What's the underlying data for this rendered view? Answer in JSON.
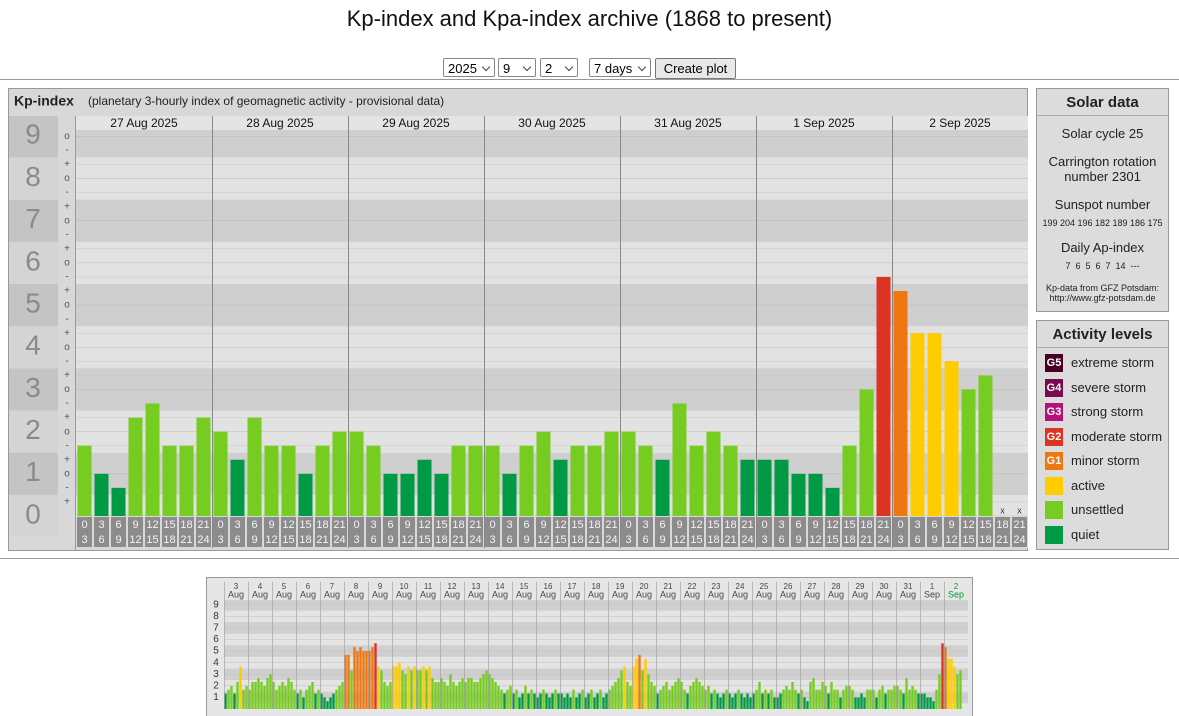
{
  "title": "Kp-index and Kpa-index archive (1868 to present)",
  "controls": {
    "year": "2025",
    "month": "9",
    "day": "2",
    "span": "7 days",
    "button": "Create plot"
  },
  "chart_data": [
    {
      "type": "bar",
      "title": "Kp-index",
      "subtitle": "(planetary 3-hourly index of geomagnetic activity - provisional data)",
      "days": [
        "27 Aug 2025",
        "28 Aug 2025",
        "29 Aug 2025",
        "30 Aug 2025",
        "31 Aug 2025",
        "1 Sep 2025",
        "2 Sep 2025"
      ],
      "hour_intervals": [
        [
          "0",
          "3"
        ],
        [
          "3",
          "6"
        ],
        [
          "6",
          "9"
        ],
        [
          "9",
          "12"
        ],
        [
          "12",
          "15"
        ],
        [
          "15",
          "18"
        ],
        [
          "18",
          "21"
        ],
        [
          "21",
          "24"
        ]
      ],
      "missing_label": "x",
      "values": [
        1.667,
        1,
        0.667,
        2.333,
        2.667,
        1.667,
        1.667,
        2.333,
        2,
        1.333,
        2.333,
        1.667,
        1.667,
        1,
        1.667,
        2,
        2,
        1.667,
        1,
        1,
        1.333,
        1,
        1.667,
        1.667,
        1.667,
        1,
        1.667,
        2,
        1.333,
        1.667,
        1.667,
        2,
        2,
        1.667,
        1.333,
        2.667,
        1.667,
        2,
        1.667,
        1.333,
        1.333,
        1.333,
        1,
        1,
        0.667,
        1.667,
        3,
        5.667,
        5.333,
        4.333,
        4.333,
        3.667,
        3,
        3.333,
        null,
        null
      ],
      "colors": [
        "#7c2",
        "#094",
        "#094",
        "#7c2",
        "#7c2",
        "#7c2",
        "#7c2",
        "#7c2",
        "#7c2",
        "#094",
        "#7c2",
        "#7c2",
        "#7c2",
        "#094",
        "#7c2",
        "#7c2",
        "#7c2",
        "#7c2",
        "#094",
        "#094",
        "#094",
        "#094",
        "#7c2",
        "#7c2",
        "#7c2",
        "#094",
        "#7c2",
        "#7c2",
        "#094",
        "#7c2",
        "#7c2",
        "#7c2",
        "#7c2",
        "#7c2",
        "#094",
        "#7c2",
        "#7c2",
        "#7c2",
        "#7c2",
        "#094",
        "#094",
        "#094",
        "#094",
        "#094",
        "#094",
        "#7c2",
        "#7c2",
        "#d32",
        "#e71",
        "#fc0",
        "#fc0",
        "#fc0",
        "#7c2",
        "#7c2",
        null,
        null
      ],
      "ylim": [
        0,
        9.15
      ],
      "yticks": [
        0,
        1,
        2,
        3,
        4,
        5,
        6,
        7,
        8,
        9
      ],
      "minor_tick_labels": [
        "-",
        "o",
        "+"
      ]
    },
    {
      "type": "bar",
      "days": [
        [
          "3",
          "Aug"
        ],
        [
          "4",
          "Aug"
        ],
        [
          "5",
          "Aug"
        ],
        [
          "6",
          "Aug"
        ],
        [
          "7",
          "Aug"
        ],
        [
          "8",
          "Aug"
        ],
        [
          "9",
          "Aug"
        ],
        [
          "10",
          "Aug"
        ],
        [
          "11",
          "Aug"
        ],
        [
          "12",
          "Aug"
        ],
        [
          "13",
          "Aug"
        ],
        [
          "14",
          "Aug"
        ],
        [
          "15",
          "Aug"
        ],
        [
          "16",
          "Aug"
        ],
        [
          "17",
          "Aug"
        ],
        [
          "18",
          "Aug"
        ],
        [
          "19",
          "Aug"
        ],
        [
          "20",
          "Aug"
        ],
        [
          "21",
          "Aug"
        ],
        [
          "22",
          "Aug"
        ],
        [
          "23",
          "Aug"
        ],
        [
          "24",
          "Aug"
        ],
        [
          "25",
          "Aug"
        ],
        [
          "26",
          "Aug"
        ],
        [
          "27",
          "Aug"
        ],
        [
          "28",
          "Aug"
        ],
        [
          "29",
          "Aug"
        ],
        [
          "30",
          "Aug"
        ],
        [
          "31",
          "Aug"
        ],
        [
          "1",
          "Sep"
        ],
        [
          "2",
          "Sep"
        ]
      ],
      "current_day_color": "#093",
      "values": [
        1.333,
        1.667,
        2,
        1.333,
        2.333,
        3.667,
        1.667,
        2,
        1.667,
        2.333,
        2.333,
        2.667,
        2.333,
        2,
        2.667,
        3,
        2.333,
        1.667,
        2,
        2.333,
        2,
        2.667,
        2.333,
        1.667,
        1.333,
        1.667,
        1,
        1.667,
        2,
        2.333,
        1.333,
        1.667,
        1.333,
        1,
        0.667,
        1,
        1.333,
        1.667,
        2,
        2.333,
        4.667,
        4.667,
        3.333,
        5.333,
        5,
        5.333,
        5,
        5,
        5,
        5.333,
        5.667,
        3.667,
        3.333,
        2.333,
        2,
        2.333,
        3.667,
        3.667,
        4,
        3.333,
        3,
        3.667,
        3.333,
        3.667,
        3.333,
        3.333,
        3.667,
        3.333,
        3.667,
        2.667,
        2.333,
        2.333,
        2.667,
        2.333,
        2,
        3,
        2.333,
        2,
        2.333,
        2.667,
        2.333,
        2.667,
        2.667,
        2.333,
        2.333,
        2.667,
        3,
        3.333,
        3,
        2.667,
        2.333,
        2,
        1.667,
        1.333,
        1.667,
        2,
        1.333,
        1.667,
        1,
        1.333,
        2,
        1.333,
        1.667,
        1.333,
        1,
        1.333,
        1.667,
        1.333,
        1,
        1.333,
        1.667,
        1.333,
        1.333,
        1,
        1.333,
        1,
        1.667,
        1,
        1.333,
        1.667,
        1,
        1.333,
        1.667,
        1,
        1.333,
        1.667,
        1,
        1.333,
        1.667,
        2,
        2.333,
        2.667,
        3.333,
        3.667,
        2.333,
        2,
        3.667,
        4.333,
        4.667,
        3.333,
        4.333,
        3,
        2.333,
        2,
        1.333,
        1.667,
        2,
        2.333,
        1.667,
        2,
        2.333,
        2.667,
        2.333,
        1.667,
        1.333,
        2,
        2.333,
        2.667,
        2.333,
        2,
        1.667,
        2,
        1.333,
        1.667,
        1.333,
        1,
        1.333,
        1.667,
        1.333,
        1,
        1.333,
        1.667,
        1.333,
        1,
        1.333,
        1,
        1.333,
        1.667,
        2.333,
        1.333,
        1.667,
        1.333,
        1.667,
        1,
        1,
        1.333,
        1.667,
        2,
        1.667,
        2.333,
        1.667,
        1.333,
        1.667,
        1,
        0.667,
        2.333,
        2.667,
        1.667,
        1.667,
        2.333,
        2,
        1.333,
        2.333,
        1.667,
        1.667,
        1,
        1.667,
        2,
        2,
        1.667,
        1,
        1,
        1.333,
        1,
        1.667,
        1.667,
        1.667,
        1,
        1.667,
        2,
        1.333,
        1.667,
        1.667,
        2,
        2,
        1.667,
        1.333,
        2.667,
        1.667,
        2,
        1.667,
        1.333,
        1.333,
        1.333,
        1,
        1,
        0.667,
        1.667,
        3,
        5.667,
        5.333,
        4.333,
        4.333,
        3.667,
        3,
        3.333,
        null,
        null
      ],
      "colors": [
        "#094",
        "#7c2",
        "#7c2",
        "#094",
        "#7c2",
        "#fc0",
        "#7c2",
        "#7c2",
        "#7c2",
        "#7c2",
        "#7c2",
        "#7c2",
        "#7c2",
        "#7c2",
        "#7c2",
        "#7c2",
        "#7c2",
        "#7c2",
        "#7c2",
        "#7c2",
        "#7c2",
        "#7c2",
        "#7c2",
        "#7c2",
        "#094",
        "#7c2",
        "#094",
        "#7c2",
        "#7c2",
        "#7c2",
        "#094",
        "#7c2",
        "#094",
        "#094",
        "#094",
        "#094",
        "#094",
        "#7c2",
        "#7c2",
        "#7c2",
        "#e71",
        "#e71",
        "#7c2",
        "#e71",
        "#e71",
        "#e71",
        "#e71",
        "#e71",
        "#e71",
        "#e71",
        "#d32",
        "#fc0",
        "#7c2",
        "#7c2",
        "#7c2",
        "#7c2",
        "#fc0",
        "#fc0",
        "#fc0",
        "#7c2",
        "#7c2",
        "#fc0",
        "#7c2",
        "#fc0",
        "#7c2",
        "#7c2",
        "#fc0",
        "#7c2",
        "#fc0",
        "#7c2",
        "#7c2",
        "#7c2",
        "#7c2",
        "#7c2",
        "#7c2",
        "#7c2",
        "#7c2",
        "#7c2",
        "#7c2",
        "#7c2",
        "#7c2",
        "#7c2",
        "#7c2",
        "#7c2",
        "#7c2",
        "#7c2",
        "#7c2",
        "#7c2",
        "#7c2",
        "#7c2",
        "#7c2",
        "#7c2",
        "#7c2",
        "#094",
        "#7c2",
        "#7c2",
        "#094",
        "#7c2",
        "#094",
        "#094",
        "#7c2",
        "#094",
        "#7c2",
        "#094",
        "#094",
        "#094",
        "#7c2",
        "#094",
        "#094",
        "#094",
        "#7c2",
        "#094",
        "#094",
        "#094",
        "#094",
        "#094",
        "#7c2",
        "#094",
        "#094",
        "#7c2",
        "#094",
        "#094",
        "#7c2",
        "#094",
        "#094",
        "#7c2",
        "#094",
        "#094",
        "#7c2",
        "#7c2",
        "#7c2",
        "#7c2",
        "#7c2",
        "#fc0",
        "#7c2",
        "#7c2",
        "#fc0",
        "#fc0",
        "#e71",
        "#7c2",
        "#fc0",
        "#7c2",
        "#7c2",
        "#7c2",
        "#094",
        "#7c2",
        "#7c2",
        "#7c2",
        "#7c2",
        "#7c2",
        "#7c2",
        "#7c2",
        "#7c2",
        "#7c2",
        "#094",
        "#7c2",
        "#7c2",
        "#7c2",
        "#7c2",
        "#7c2",
        "#7c2",
        "#7c2",
        "#094",
        "#7c2",
        "#094",
        "#094",
        "#094",
        "#7c2",
        "#094",
        "#094",
        "#094",
        "#7c2",
        "#094",
        "#094",
        "#094",
        "#094",
        "#094",
        "#7c2",
        "#7c2",
        "#094",
        "#7c2",
        "#094",
        "#7c2",
        "#094",
        "#094",
        "#094",
        "#7c2",
        "#7c2",
        "#7c2",
        "#7c2",
        "#7c2",
        "#094",
        "#7c2",
        "#094",
        "#094",
        "#7c2",
        "#7c2",
        "#7c2",
        "#7c2",
        "#7c2",
        "#7c2",
        "#094",
        "#7c2",
        "#7c2",
        "#7c2",
        "#094",
        "#7c2",
        "#7c2",
        "#7c2",
        "#7c2",
        "#094",
        "#094",
        "#094",
        "#094",
        "#7c2",
        "#7c2",
        "#7c2",
        "#094",
        "#7c2",
        "#7c2",
        "#094",
        "#7c2",
        "#7c2",
        "#7c2",
        "#7c2",
        "#7c2",
        "#094",
        "#7c2",
        "#7c2",
        "#7c2",
        "#7c2",
        "#094",
        "#094",
        "#094",
        "#094",
        "#094",
        "#094",
        "#7c2",
        "#7c2",
        "#d32",
        "#e71",
        "#fc0",
        "#fc0",
        "#fc0",
        "#7c2",
        "#7c2",
        null,
        null
      ],
      "ylim": [
        0,
        9.4
      ],
      "yticks": [
        1,
        2,
        3,
        4,
        5,
        6,
        7,
        8,
        9
      ]
    }
  ],
  "solar_data": {
    "title": "Solar data",
    "cycle": "Solar cycle 25",
    "carrington": [
      "Carrington rotation",
      "number 2301"
    ],
    "sunspot_title": "Sunspot number",
    "sunspot_values": "199 204 196 182 189 186 175",
    "ap_title": "Daily Ap-index",
    "ap_values": "7  6  5  6  7  14  ---",
    "source": "Kp-data from GFZ Potsdam:",
    "url": "http://www.gfz-potsdam.de"
  },
  "activity_levels": {
    "title": "Activity levels",
    "items": [
      {
        "badge": "G5",
        "label": "extreme storm",
        "color": "#4a0025"
      },
      {
        "badge": "G4",
        "label": "severe storm",
        "color": "#7a0a4e"
      },
      {
        "badge": "G3",
        "label": "strong storm",
        "color": "#b0147a"
      },
      {
        "badge": "G2",
        "label": "moderate storm",
        "color": "#d32"
      },
      {
        "badge": "G1",
        "label": "minor storm",
        "color": "#e71"
      },
      {
        "label": "active",
        "color": "#fc0"
      },
      {
        "label": "unsettled",
        "color": "#7c2"
      },
      {
        "label": "quiet",
        "color": "#094"
      }
    ]
  }
}
